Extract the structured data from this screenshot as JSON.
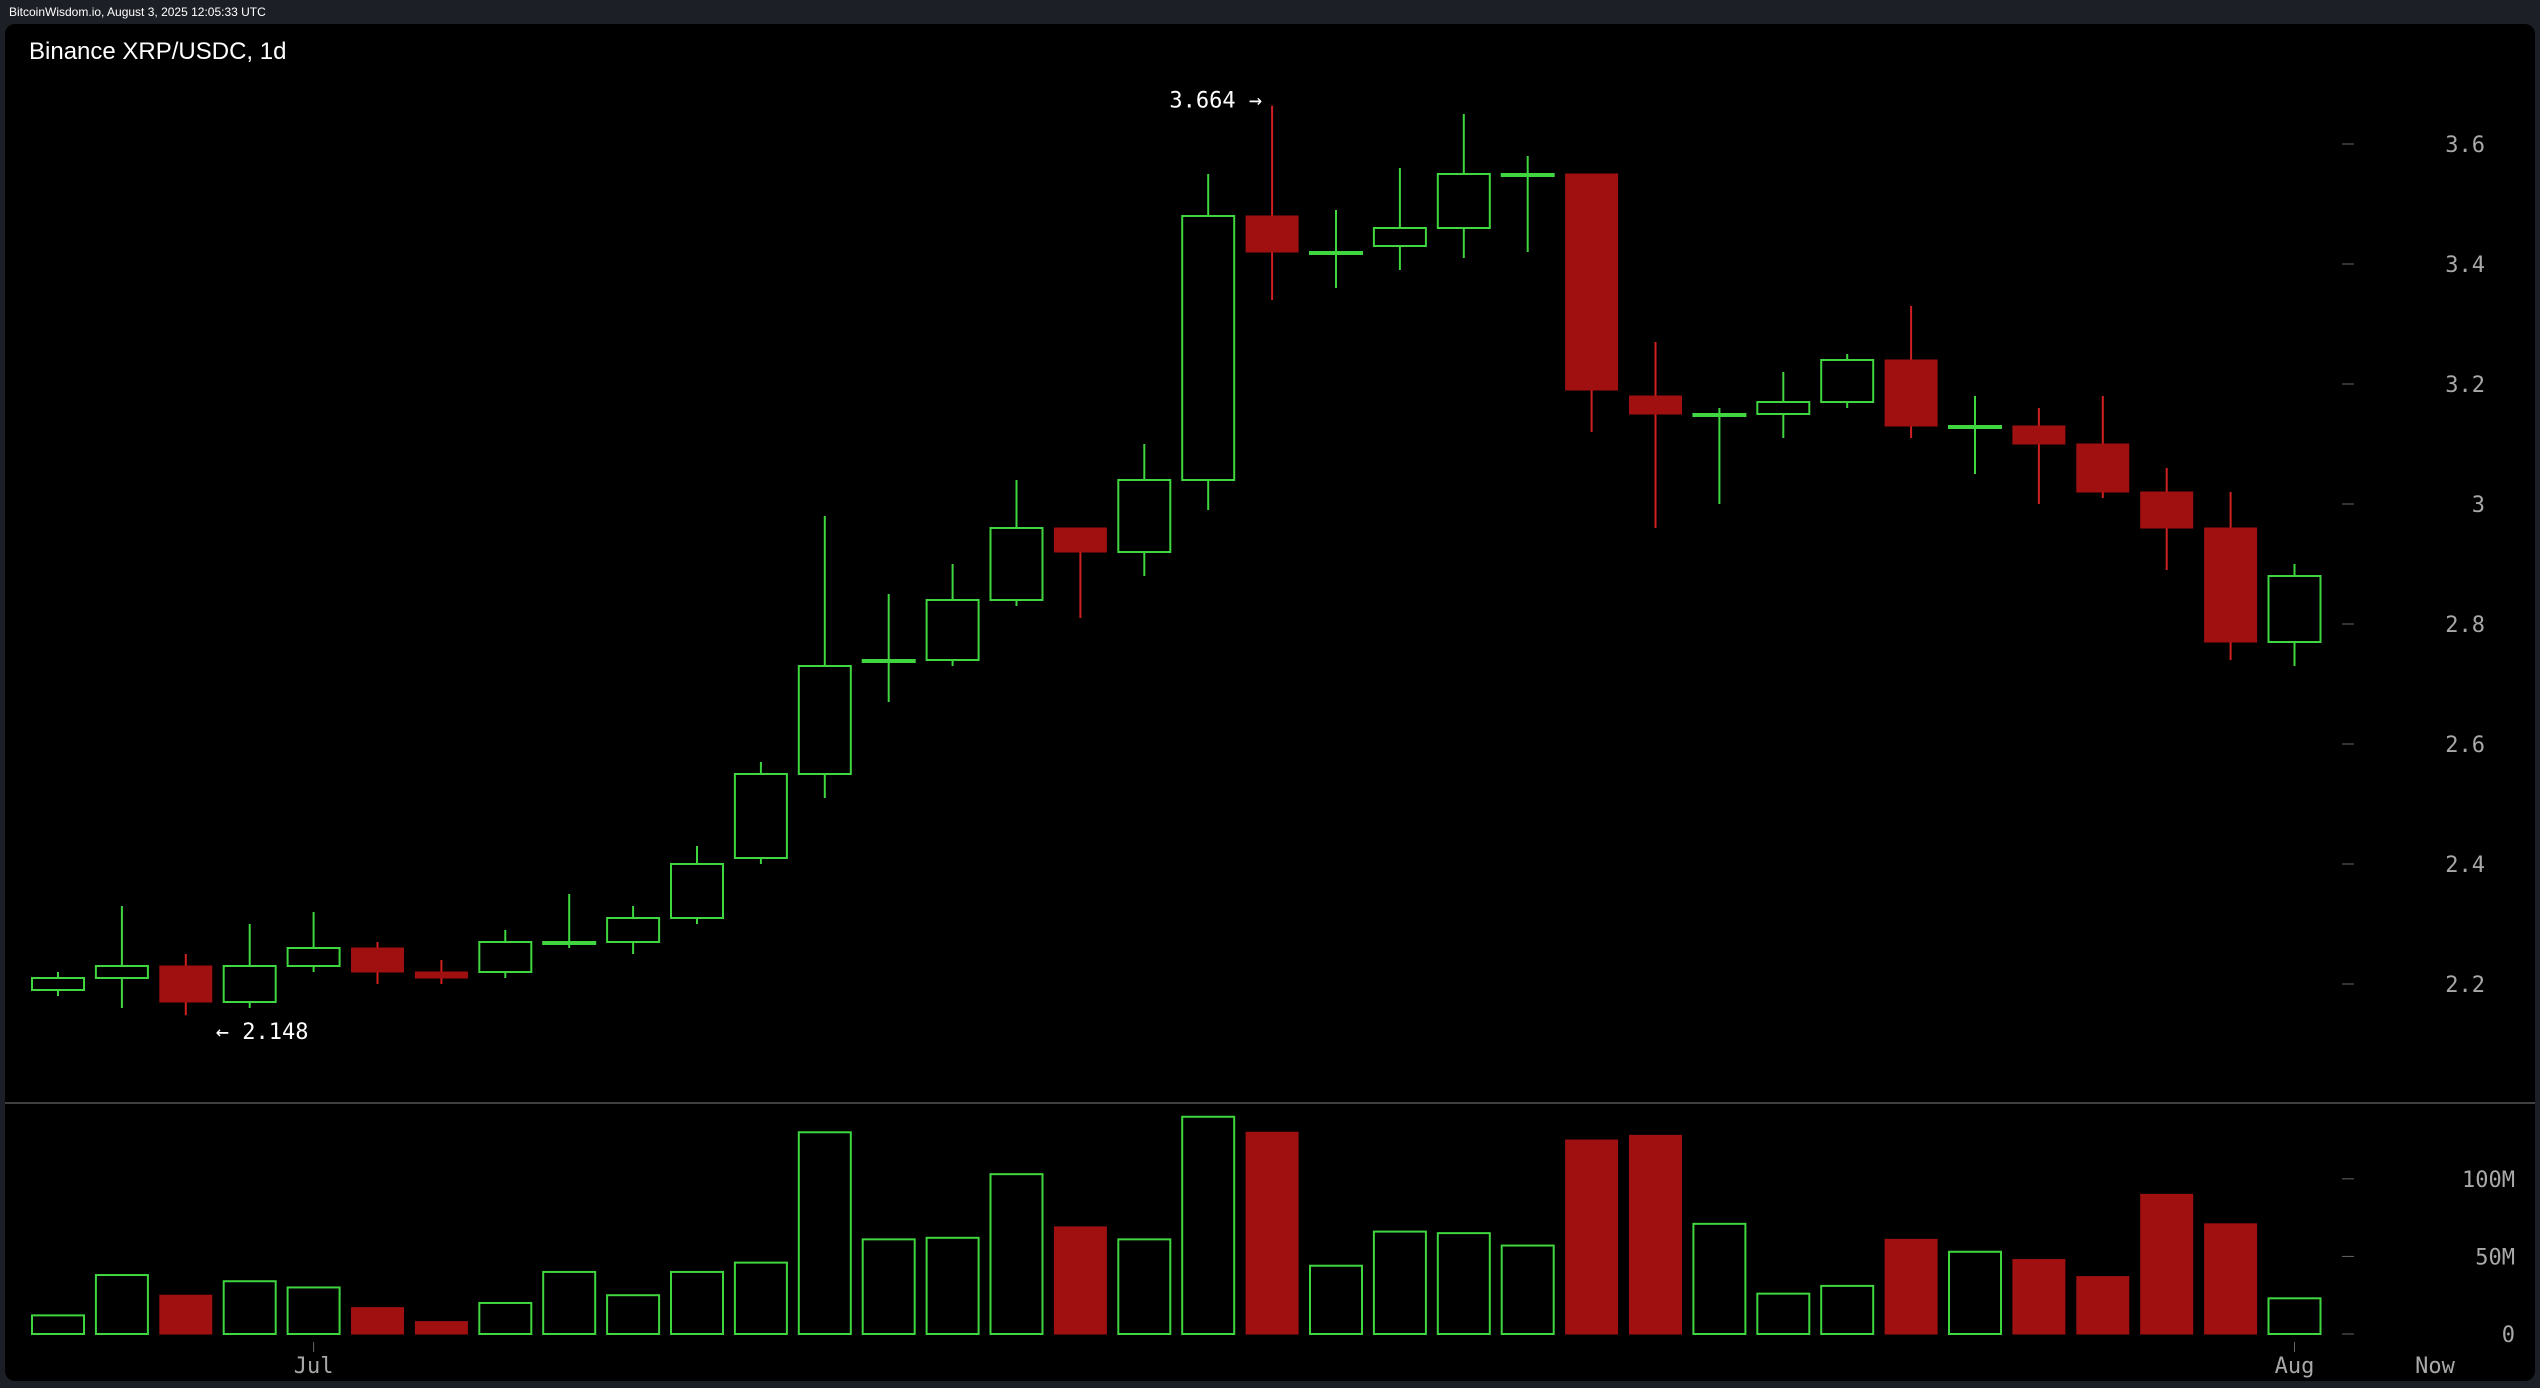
{
  "header": {
    "source_line": "BitcoinWisdom.io, August 3, 2025 12:05:33 UTC"
  },
  "chart_title": "Binance XRP/USDC, 1d",
  "colors": {
    "up": "#3fd63f",
    "down": "#a01010",
    "background": "#000000",
    "axis_text": "#a8a8a8"
  },
  "chart_data": {
    "type": "candlestick",
    "title": "Binance XRP/USDC, 1d",
    "candles": [
      {
        "date": "2025-06-27",
        "o": 2.19,
        "h": 2.22,
        "l": 2.18,
        "c": 2.21
      },
      {
        "date": "2025-06-28",
        "o": 2.21,
        "h": 2.33,
        "l": 2.16,
        "c": 2.23
      },
      {
        "date": "2025-06-29",
        "o": 2.23,
        "h": 2.25,
        "l": 2.148,
        "c": 2.17
      },
      {
        "date": "2025-06-30",
        "o": 2.17,
        "h": 2.3,
        "l": 2.16,
        "c": 2.23
      },
      {
        "date": "2025-07-01",
        "o": 2.23,
        "h": 2.32,
        "l": 2.22,
        "c": 2.26
      },
      {
        "date": "2025-07-02",
        "o": 2.26,
        "h": 2.27,
        "l": 2.2,
        "c": 2.22
      },
      {
        "date": "2025-07-03",
        "o": 2.22,
        "h": 2.24,
        "l": 2.2,
        "c": 2.21
      },
      {
        "date": "2025-07-04",
        "o": 2.22,
        "h": 2.29,
        "l": 2.21,
        "c": 2.27
      },
      {
        "date": "2025-07-05",
        "o": 2.27,
        "h": 2.35,
        "l": 2.26,
        "c": 2.27
      },
      {
        "date": "2025-07-06",
        "o": 2.27,
        "h": 2.33,
        "l": 2.25,
        "c": 2.31
      },
      {
        "date": "2025-07-07",
        "o": 2.31,
        "h": 2.43,
        "l": 2.3,
        "c": 2.4
      },
      {
        "date": "2025-07-08",
        "o": 2.41,
        "h": 2.57,
        "l": 2.4,
        "c": 2.55
      },
      {
        "date": "2025-07-09",
        "o": 2.55,
        "h": 2.98,
        "l": 2.51,
        "c": 2.73
      },
      {
        "date": "2025-07-10",
        "o": 2.74,
        "h": 2.85,
        "l": 2.67,
        "c": 2.74
      },
      {
        "date": "2025-07-11",
        "o": 2.74,
        "h": 2.9,
        "l": 2.73,
        "c": 2.84
      },
      {
        "date": "2025-07-12",
        "o": 2.84,
        "h": 3.04,
        "l": 2.83,
        "c": 2.96
      },
      {
        "date": "2025-07-13",
        "o": 2.96,
        "h": 2.96,
        "l": 2.81,
        "c": 2.92
      },
      {
        "date": "2025-07-14",
        "o": 2.92,
        "h": 3.1,
        "l": 2.88,
        "c": 3.04
      },
      {
        "date": "2025-07-15",
        "o": 3.04,
        "h": 3.55,
        "l": 2.99,
        "c": 3.48
      },
      {
        "date": "2025-07-16",
        "o": 3.48,
        "h": 3.664,
        "l": 3.34,
        "c": 3.42
      },
      {
        "date": "2025-07-17",
        "o": 3.42,
        "h": 3.49,
        "l": 3.36,
        "c": 3.42
      },
      {
        "date": "2025-07-18",
        "o": 3.43,
        "h": 3.56,
        "l": 3.39,
        "c": 3.46
      },
      {
        "date": "2025-07-19",
        "o": 3.46,
        "h": 3.65,
        "l": 3.41,
        "c": 3.55
      },
      {
        "date": "2025-07-20",
        "o": 3.55,
        "h": 3.58,
        "l": 3.42,
        "c": 3.55
      },
      {
        "date": "2025-07-21",
        "o": 3.55,
        "h": 3.55,
        "l": 3.12,
        "c": 3.19
      },
      {
        "date": "2025-07-22",
        "o": 3.18,
        "h": 3.27,
        "l": 2.96,
        "c": 3.15
      },
      {
        "date": "2025-07-23",
        "o": 3.15,
        "h": 3.16,
        "l": 3.0,
        "c": 3.15
      },
      {
        "date": "2025-07-24",
        "o": 3.15,
        "h": 3.22,
        "l": 3.11,
        "c": 3.17
      },
      {
        "date": "2025-07-25",
        "o": 3.17,
        "h": 3.25,
        "l": 3.16,
        "c": 3.24
      },
      {
        "date": "2025-07-26",
        "o": 3.24,
        "h": 3.33,
        "l": 3.11,
        "c": 3.13
      },
      {
        "date": "2025-07-27",
        "o": 3.13,
        "h": 3.18,
        "l": 3.05,
        "c": 3.13
      },
      {
        "date": "2025-07-28",
        "o": 3.13,
        "h": 3.16,
        "l": 3.0,
        "c": 3.1
      },
      {
        "date": "2025-07-29",
        "o": 3.1,
        "h": 3.18,
        "l": 3.01,
        "c": 3.02
      },
      {
        "date": "2025-07-30",
        "o": 3.02,
        "h": 3.06,
        "l": 2.89,
        "c": 2.96
      },
      {
        "date": "2025-07-31",
        "o": 2.96,
        "h": 3.02,
        "l": 2.74,
        "c": 2.77
      },
      {
        "date": "2025-08-01",
        "o": 2.77,
        "h": 2.9,
        "l": 2.73,
        "c": 2.88
      }
    ],
    "volume": [
      12,
      38,
      25,
      34,
      30,
      17,
      8,
      20,
      40,
      25,
      40,
      46,
      130,
      61,
      62,
      103,
      69,
      61,
      140,
      130,
      44,
      66,
      65,
      57,
      125,
      128,
      71,
      26,
      31,
      61,
      53,
      48,
      37,
      90,
      71,
      23
    ],
    "price_axis": {
      "ylim": [
        2.05,
        3.73
      ],
      "ticks": [
        2.2,
        2.4,
        2.6,
        2.8,
        3.0,
        3.2,
        3.4,
        3.6
      ],
      "tick_labels": [
        "2.2",
        "2.4",
        "2.6",
        "2.8",
        "3",
        "3.2",
        "3.4",
        "3.6"
      ]
    },
    "volume_axis": {
      "ylim": [
        0,
        145
      ],
      "ticks": [
        0,
        50,
        100
      ],
      "tick_labels": [
        "0",
        "50M",
        "100M"
      ]
    },
    "x_axis": {
      "labels": [
        {
          "text": "Jul",
          "at_date": "2025-07-01"
        },
        {
          "text": "Aug",
          "at_date": "2025-08-01"
        },
        {
          "text": "Now",
          "at_date": "now"
        }
      ]
    },
    "annotations": {
      "high": {
        "value": 3.664,
        "text": "3.664 →",
        "at_date": "2025-07-16"
      },
      "low": {
        "value": 2.148,
        "text": "← 2.148",
        "at_date": "2025-06-29"
      }
    },
    "grid": false
  }
}
